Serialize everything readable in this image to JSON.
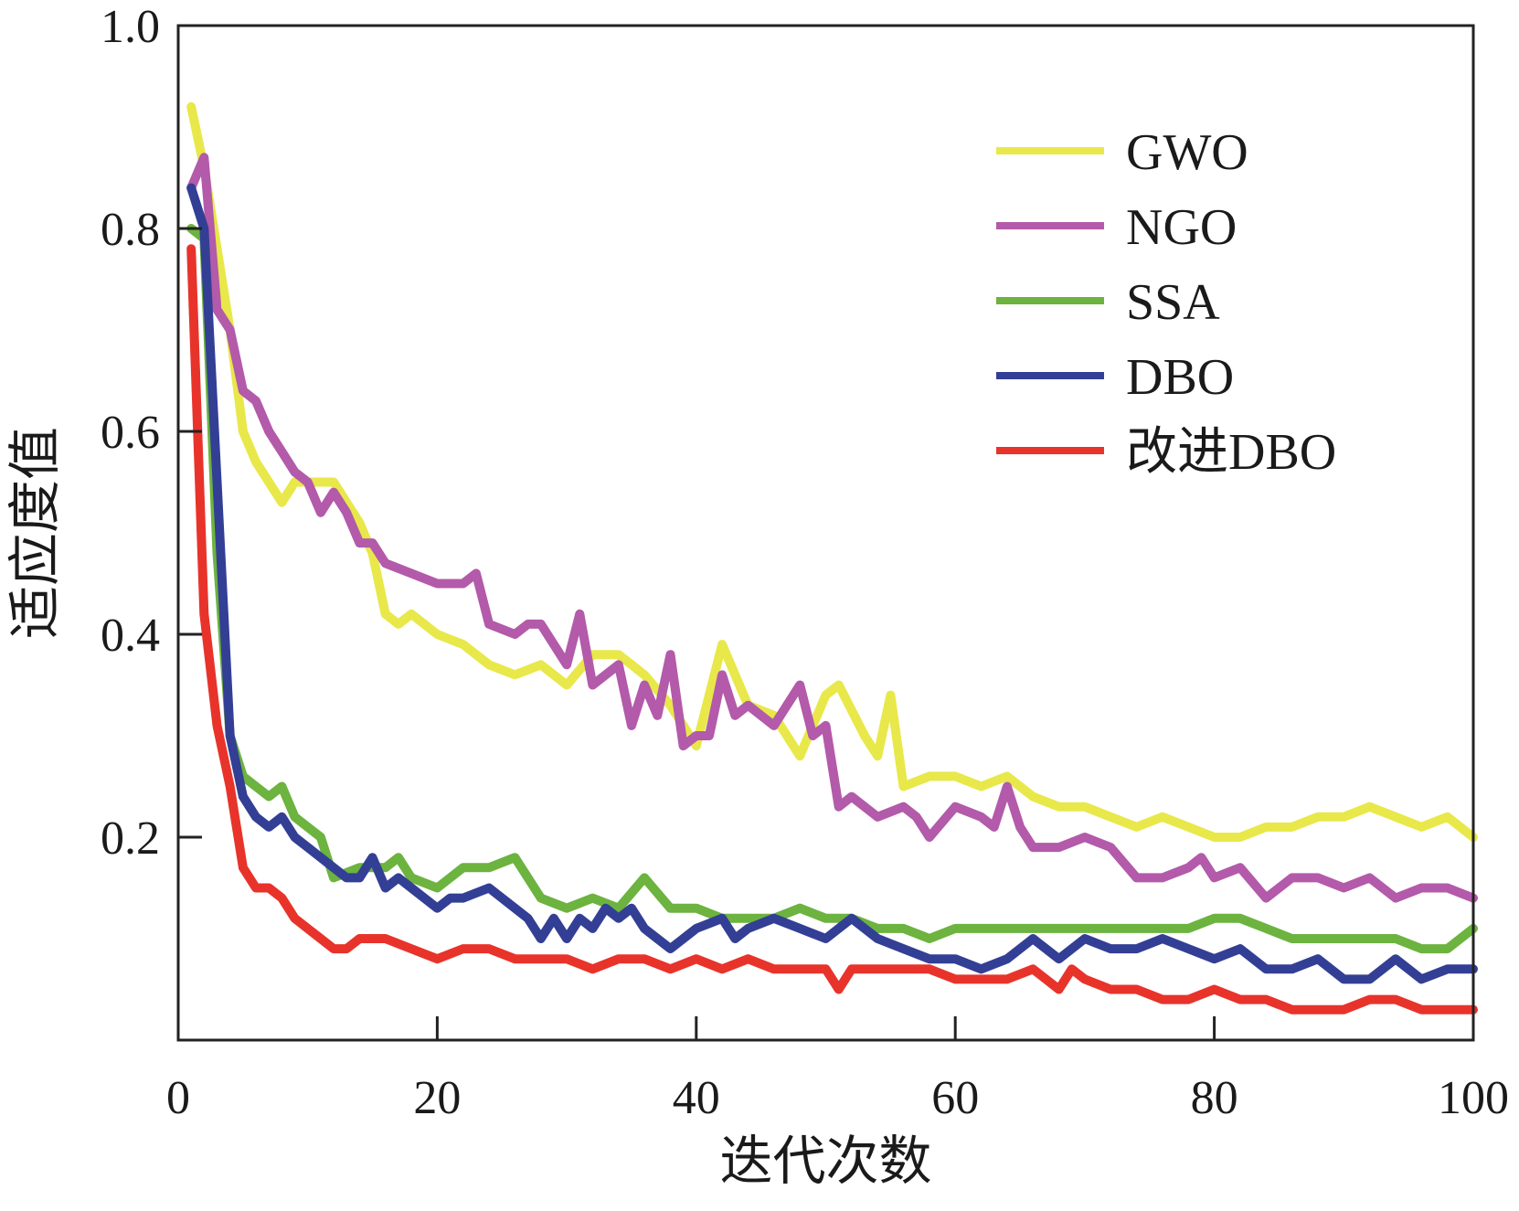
{
  "chart_data": {
    "type": "line",
    "title": "",
    "xlabel": "迭代次数",
    "ylabel": "适应度值",
    "xlim": [
      0,
      100
    ],
    "ylim": [
      0,
      1.0
    ],
    "xticks": [
      0,
      20,
      40,
      60,
      80,
      100
    ],
    "yticks": [
      0.2,
      0.4,
      0.6,
      0.8,
      1.0
    ],
    "xtick_labels": [
      "0",
      "20",
      "40",
      "60",
      "80",
      "100"
    ],
    "ytick_labels": [
      "0.2",
      "0.4",
      "0.6",
      "0.8",
      "1.0"
    ],
    "grid": false,
    "legend_position": "top-right",
    "series": [
      {
        "name": "GWO",
        "color": "#e8e84a",
        "x": [
          1,
          2,
          3,
          4,
          5,
          6,
          7,
          8,
          9,
          10,
          12,
          14,
          15,
          16,
          17,
          18,
          20,
          22,
          24,
          26,
          28,
          30,
          32,
          34,
          35,
          36,
          38,
          40,
          42,
          44,
          46,
          48,
          50,
          51,
          53,
          54,
          55,
          56,
          58,
          60,
          62,
          64,
          66,
          68,
          70,
          72,
          74,
          76,
          78,
          80,
          82,
          84,
          86,
          88,
          90,
          92,
          94,
          96,
          98,
          100
        ],
        "values": [
          0.92,
          0.86,
          0.78,
          0.7,
          0.6,
          0.57,
          0.55,
          0.53,
          0.55,
          0.55,
          0.55,
          0.51,
          0.48,
          0.42,
          0.41,
          0.42,
          0.4,
          0.39,
          0.37,
          0.36,
          0.37,
          0.35,
          0.38,
          0.38,
          0.37,
          0.36,
          0.33,
          0.29,
          0.39,
          0.33,
          0.32,
          0.28,
          0.34,
          0.35,
          0.3,
          0.28,
          0.34,
          0.25,
          0.26,
          0.26,
          0.25,
          0.26,
          0.24,
          0.23,
          0.23,
          0.22,
          0.21,
          0.22,
          0.21,
          0.2,
          0.2,
          0.21,
          0.21,
          0.22,
          0.22,
          0.23,
          0.22,
          0.21,
          0.22,
          0.2
        ]
      },
      {
        "name": "NGO",
        "color": "#b35aaa",
        "x": [
          1,
          2,
          3,
          4,
          5,
          6,
          7,
          8,
          9,
          10,
          11,
          12,
          13,
          14,
          15,
          16,
          18,
          20,
          22,
          23,
          24,
          26,
          27,
          28,
          30,
          31,
          32,
          34,
          35,
          36,
          37,
          38,
          39,
          40,
          41,
          42,
          43,
          44,
          46,
          48,
          49,
          50,
          51,
          52,
          54,
          56,
          57,
          58,
          60,
          62,
          63,
          64,
          65,
          66,
          68,
          70,
          72,
          74,
          76,
          78,
          79,
          80,
          82,
          84,
          86,
          88,
          90,
          92,
          94,
          96,
          98,
          100
        ],
        "values": [
          0.84,
          0.87,
          0.72,
          0.7,
          0.64,
          0.63,
          0.6,
          0.58,
          0.56,
          0.55,
          0.52,
          0.54,
          0.52,
          0.49,
          0.49,
          0.47,
          0.46,
          0.45,
          0.45,
          0.46,
          0.41,
          0.4,
          0.41,
          0.41,
          0.37,
          0.42,
          0.35,
          0.37,
          0.31,
          0.35,
          0.32,
          0.38,
          0.29,
          0.3,
          0.3,
          0.36,
          0.32,
          0.33,
          0.31,
          0.35,
          0.3,
          0.31,
          0.23,
          0.24,
          0.22,
          0.23,
          0.22,
          0.2,
          0.23,
          0.22,
          0.21,
          0.25,
          0.21,
          0.19,
          0.19,
          0.2,
          0.19,
          0.16,
          0.16,
          0.17,
          0.18,
          0.16,
          0.17,
          0.14,
          0.16,
          0.16,
          0.15,
          0.16,
          0.14,
          0.15,
          0.15,
          0.14
        ]
      },
      {
        "name": "SSA",
        "color": "#6cb33f",
        "x": [
          1,
          2,
          3,
          4,
          5,
          6,
          7,
          8,
          9,
          10,
          11,
          12,
          14,
          16,
          17,
          18,
          20,
          22,
          24,
          26,
          28,
          30,
          32,
          34,
          36,
          38,
          40,
          42,
          44,
          46,
          48,
          50,
          52,
          54,
          56,
          58,
          60,
          62,
          64,
          66,
          68,
          70,
          72,
          74,
          76,
          78,
          80,
          82,
          84,
          86,
          88,
          90,
          92,
          94,
          96,
          98,
          100
        ],
        "values": [
          0.8,
          0.79,
          0.48,
          0.3,
          0.26,
          0.25,
          0.24,
          0.25,
          0.22,
          0.21,
          0.2,
          0.16,
          0.17,
          0.17,
          0.18,
          0.16,
          0.15,
          0.17,
          0.17,
          0.18,
          0.14,
          0.13,
          0.14,
          0.13,
          0.16,
          0.13,
          0.13,
          0.12,
          0.12,
          0.12,
          0.13,
          0.12,
          0.12,
          0.11,
          0.11,
          0.1,
          0.11,
          0.11,
          0.11,
          0.11,
          0.11,
          0.11,
          0.11,
          0.11,
          0.11,
          0.11,
          0.12,
          0.12,
          0.11,
          0.1,
          0.1,
          0.1,
          0.1,
          0.1,
          0.09,
          0.09,
          0.11
        ]
      },
      {
        "name": "DBO",
        "color": "#333f95",
        "x": [
          1,
          2,
          3,
          4,
          5,
          6,
          7,
          8,
          9,
          10,
          12,
          13,
          14,
          15,
          16,
          17,
          18,
          20,
          21,
          22,
          24,
          26,
          27,
          28,
          29,
          30,
          31,
          32,
          33,
          34,
          35,
          36,
          37,
          38,
          40,
          42,
          43,
          44,
          46,
          48,
          50,
          52,
          54,
          56,
          58,
          60,
          62,
          64,
          66,
          68,
          70,
          72,
          74,
          76,
          78,
          80,
          82,
          84,
          86,
          88,
          90,
          92,
          94,
          96,
          98,
          100
        ],
        "values": [
          0.84,
          0.8,
          0.55,
          0.3,
          0.24,
          0.22,
          0.21,
          0.22,
          0.2,
          0.19,
          0.17,
          0.16,
          0.16,
          0.18,
          0.15,
          0.16,
          0.15,
          0.13,
          0.14,
          0.14,
          0.15,
          0.13,
          0.12,
          0.1,
          0.12,
          0.1,
          0.12,
          0.11,
          0.13,
          0.12,
          0.13,
          0.11,
          0.1,
          0.09,
          0.11,
          0.12,
          0.1,
          0.11,
          0.12,
          0.11,
          0.1,
          0.12,
          0.1,
          0.09,
          0.08,
          0.08,
          0.07,
          0.08,
          0.1,
          0.08,
          0.1,
          0.09,
          0.09,
          0.1,
          0.09,
          0.08,
          0.09,
          0.07,
          0.07,
          0.08,
          0.06,
          0.06,
          0.08,
          0.06,
          0.07,
          0.07
        ]
      },
      {
        "name": "改进DBO",
        "color": "#e8332b",
        "x": [
          1,
          2,
          3,
          4,
          5,
          6,
          7,
          8,
          9,
          10,
          11,
          12,
          13,
          14,
          16,
          18,
          20,
          22,
          24,
          26,
          28,
          30,
          32,
          34,
          36,
          38,
          40,
          42,
          44,
          46,
          48,
          50,
          51,
          52,
          54,
          56,
          58,
          60,
          62,
          64,
          66,
          68,
          69,
          70,
          72,
          74,
          76,
          78,
          80,
          82,
          84,
          86,
          88,
          90,
          92,
          94,
          96,
          98,
          100
        ],
        "values": [
          0.78,
          0.42,
          0.31,
          0.25,
          0.17,
          0.15,
          0.15,
          0.14,
          0.12,
          0.11,
          0.1,
          0.09,
          0.09,
          0.1,
          0.1,
          0.09,
          0.08,
          0.09,
          0.09,
          0.08,
          0.08,
          0.08,
          0.07,
          0.08,
          0.08,
          0.07,
          0.08,
          0.07,
          0.08,
          0.07,
          0.07,
          0.07,
          0.05,
          0.07,
          0.07,
          0.07,
          0.07,
          0.06,
          0.06,
          0.06,
          0.07,
          0.05,
          0.07,
          0.06,
          0.05,
          0.05,
          0.04,
          0.04,
          0.05,
          0.04,
          0.04,
          0.03,
          0.03,
          0.03,
          0.04,
          0.04,
          0.03,
          0.03,
          0.03
        ]
      }
    ]
  }
}
